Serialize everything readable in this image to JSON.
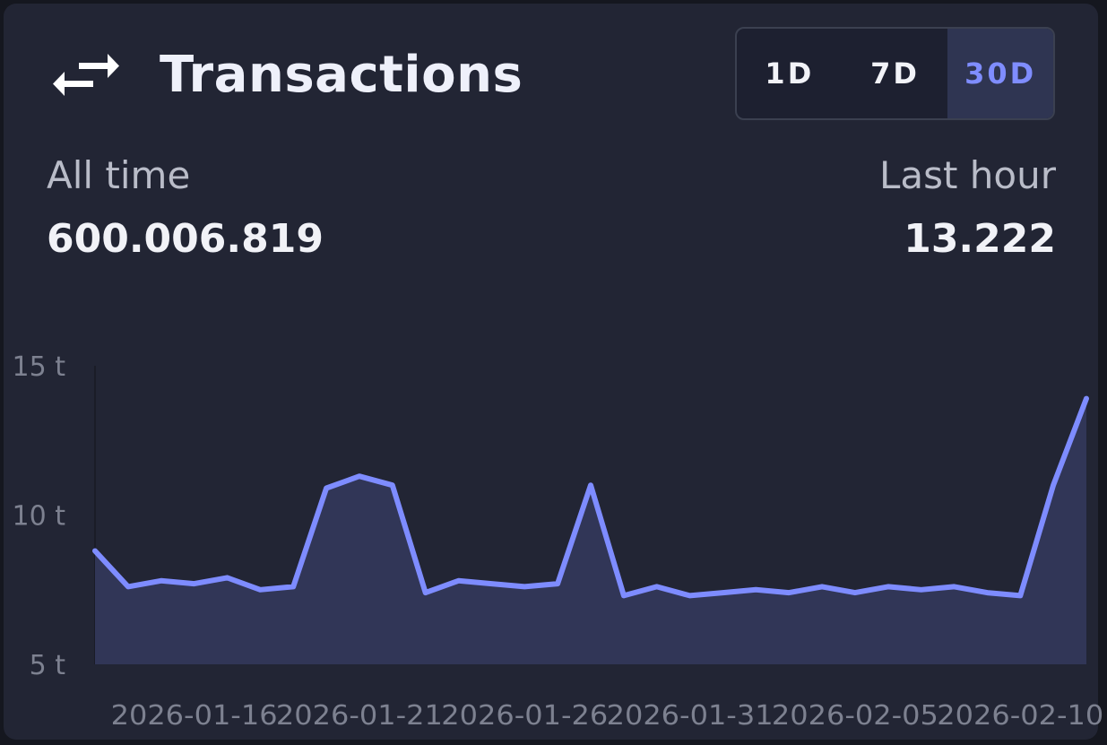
{
  "card": {
    "icon": "swap-arrows-icon",
    "title": "Transactions",
    "ranges": [
      "1D",
      "7D",
      "30D"
    ],
    "active_range": "30D",
    "all_time_label": "All time",
    "all_time_value": "600.006.819",
    "last_hour_label": "Last hour",
    "last_hour_value": "13.222"
  },
  "colors": {
    "line": "#7e8cff",
    "area": "#313657",
    "active_text": "#7f8dff"
  },
  "chart_data": {
    "type": "area",
    "ylim": [
      5,
      15
    ],
    "y_ticks": [
      {
        "value": 15,
        "label": "15 t"
      },
      {
        "value": 10,
        "label": "10 t"
      },
      {
        "value": 5,
        "label": "5 t"
      }
    ],
    "x_range": [
      "2026-01-13",
      "2026-02-12"
    ],
    "x_ticks": [
      "2026-01-16",
      "2026-01-21",
      "2026-01-26",
      "2026-01-31",
      "2026-02-05",
      "2026-02-10"
    ],
    "x": [
      "2026-01-13",
      "2026-01-14",
      "2026-01-15",
      "2026-01-16",
      "2026-01-17",
      "2026-01-18",
      "2026-01-19",
      "2026-01-20",
      "2026-01-21",
      "2026-01-22",
      "2026-01-23",
      "2026-01-24",
      "2026-01-25",
      "2026-01-26",
      "2026-01-27",
      "2026-01-28",
      "2026-01-29",
      "2026-01-30",
      "2026-01-31",
      "2026-02-01",
      "2026-02-02",
      "2026-02-03",
      "2026-02-04",
      "2026-02-05",
      "2026-02-06",
      "2026-02-07",
      "2026-02-08",
      "2026-02-09",
      "2026-02-10",
      "2026-02-11",
      "2026-02-12"
    ],
    "series": [
      {
        "values": [
          8.8,
          7.6,
          7.8,
          7.7,
          7.9,
          7.5,
          7.6,
          10.9,
          11.3,
          11.0,
          7.4,
          7.8,
          7.7,
          7.6,
          7.7,
          11.0,
          7.3,
          7.6,
          7.3,
          7.4,
          7.5,
          7.4,
          7.6,
          7.4,
          7.6,
          7.5,
          7.6,
          7.4,
          7.3,
          11.0,
          13.9
        ]
      }
    ]
  }
}
